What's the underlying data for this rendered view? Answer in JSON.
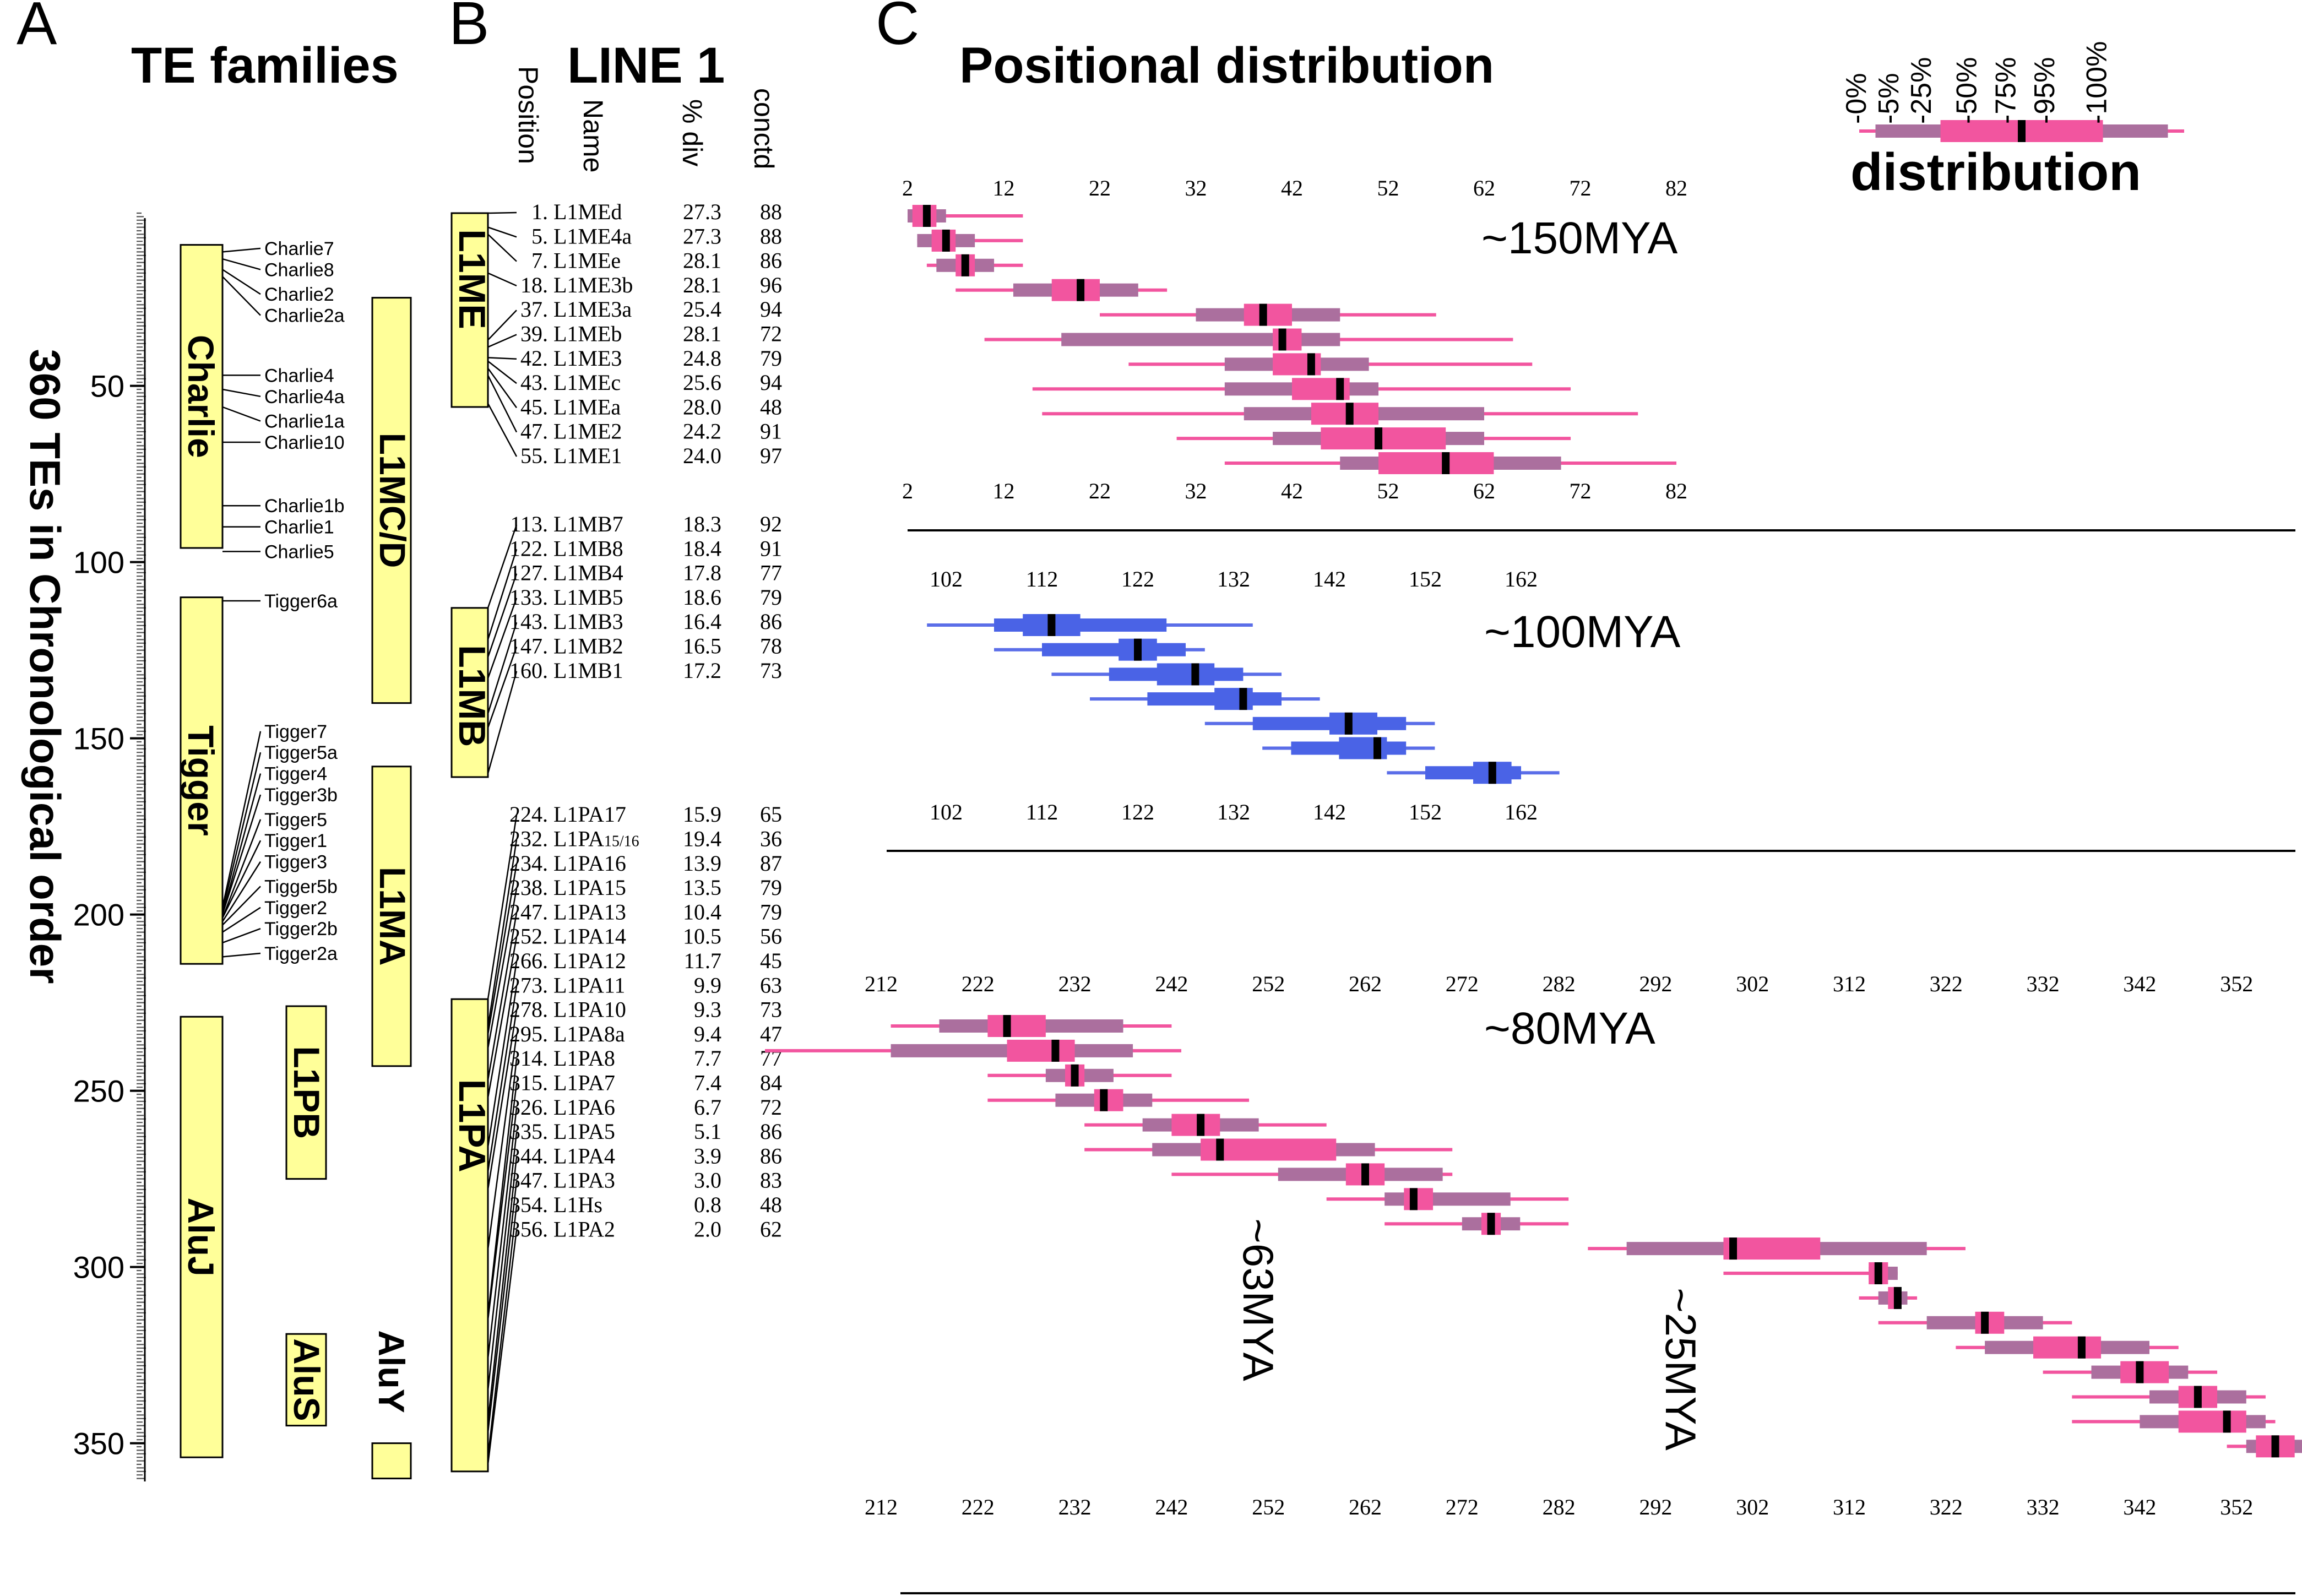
{
  "panel_a": {
    "letter": "A",
    "title": "TE families",
    "y_axis_label": "360 TEs in Chronological order",
    "ticks": [
      "50",
      "100",
      "150",
      "200",
      "250",
      "300",
      "350"
    ],
    "families": [
      {
        "name": "Charlie",
        "start": 10,
        "end": 96,
        "col": 0
      },
      {
        "name": "Tigger",
        "start": 110,
        "end": 214,
        "col": 0
      },
      {
        "name": "AluJ",
        "start": 229,
        "end": 354,
        "col": 0
      },
      {
        "name": "L1MC/D",
        "start": 25,
        "end": 140,
        "col": 2
      },
      {
        "name": "L1MA",
        "start": 158,
        "end": 243,
        "col": 2
      },
      {
        "name": "L1PB",
        "start": 226,
        "end": 275,
        "col": 1
      },
      {
        "name": "AluS",
        "start": 319,
        "end": 345,
        "col": 1
      },
      {
        "name": "AluY",
        "start": 350,
        "end": 360,
        "col": 2,
        "label_outside": true
      }
    ],
    "charlie_subfamilies": [
      {
        "name": "Charlie7",
        "row": 11,
        "at": 12
      },
      {
        "name": "Charlie8",
        "row": 17,
        "at": 14
      },
      {
        "name": "Charlie2",
        "row": 24,
        "at": 17
      },
      {
        "name": "Charlie2a",
        "row": 30,
        "at": 19
      },
      {
        "name": "Charlie4",
        "row": 47,
        "at": 47
      },
      {
        "name": "Charlie4a",
        "row": 53,
        "at": 51
      },
      {
        "name": "Charlie1a",
        "row": 60,
        "at": 56
      },
      {
        "name": "Charlie10",
        "row": 66,
        "at": 66
      },
      {
        "name": "Charlie1b",
        "row": 84,
        "at": 84
      },
      {
        "name": "Charlie1",
        "row": 90,
        "at": 90
      },
      {
        "name": "Charlie5",
        "row": 97,
        "at": 97
      }
    ],
    "tigger_subfamilies": [
      {
        "name": "Tigger6a",
        "row": 111,
        "at": 111
      },
      {
        "name": "Tigger7",
        "row": 148,
        "at": 198
      },
      {
        "name": "Tigger5a",
        "row": 154,
        "at": 199
      },
      {
        "name": "Tigger4",
        "row": 160,
        "at": 200
      },
      {
        "name": "Tigger3b",
        "row": 166,
        "at": 200
      },
      {
        "name": "Tigger5",
        "row": 173,
        "at": 201
      },
      {
        "name": "Tigger1",
        "row": 179,
        "at": 201
      },
      {
        "name": "Tigger3",
        "row": 185,
        "at": 202
      },
      {
        "name": "Tigger5b",
        "row": 192,
        "at": 203
      },
      {
        "name": "Tigger2",
        "row": 198,
        "at": 205
      },
      {
        "name": "Tigger2b",
        "row": 204,
        "at": 208
      },
      {
        "name": "Tigger2a",
        "row": 211,
        "at": 212
      }
    ]
  },
  "panel_b": {
    "letter": "B",
    "title": "LINE 1",
    "col_headers": [
      "Position",
      "Name",
      "% div",
      "conctd"
    ],
    "groups": [
      {
        "name": "L1ME",
        "start": 1,
        "end": 56
      },
      {
        "name": "L1MB",
        "start": 113,
        "end": 161
      },
      {
        "name": "L1PA",
        "start": 224,
        "end": 358
      }
    ],
    "rows": [
      {
        "pos": "1.",
        "name": "L1MEd",
        "div": "27.3",
        "conctd": "88",
        "p": 1,
        "r": 0
      },
      {
        "pos": "5.",
        "name": "L1ME4a",
        "div": "27.3",
        "conctd": "88",
        "p": 5,
        "r": 1
      },
      {
        "pos": "7.",
        "name": "L1MEe",
        "div": "28.1",
        "conctd": "86",
        "p": 7,
        "r": 2
      },
      {
        "pos": "18.",
        "name": "L1ME3b",
        "div": "28.1",
        "conctd": "96",
        "p": 18,
        "r": 3
      },
      {
        "pos": "37.",
        "name": "L1ME3a",
        "div": "25.4",
        "conctd": "94",
        "p": 37,
        "r": 4
      },
      {
        "pos": "39.",
        "name": "L1MEb",
        "div": "28.1",
        "conctd": "72",
        "p": 39,
        "r": 5
      },
      {
        "pos": "42.",
        "name": "L1ME3",
        "div": "24.8",
        "conctd": "79",
        "p": 42,
        "r": 6
      },
      {
        "pos": "43.",
        "name": "L1MEc",
        "div": "25.6",
        "conctd": "94",
        "p": 43,
        "r": 7
      },
      {
        "pos": "45.",
        "name": "L1MEa",
        "div": "28.0",
        "conctd": "48",
        "p": 45,
        "r": 8
      },
      {
        "pos": "47.",
        "name": "L1ME2",
        "div": "24.2",
        "conctd": "91",
        "p": 47,
        "r": 9
      },
      {
        "pos": "55.",
        "name": "L1ME1",
        "div": "24.0",
        "conctd": "97",
        "p": 55,
        "r": 10
      },
      {
        "pos": "113.",
        "name": "L1MB7",
        "div": "18.3",
        "conctd": "92",
        "p": 113,
        "r": 12.8
      },
      {
        "pos": "122.",
        "name": "L1MB8",
        "div": "18.4",
        "conctd": "91",
        "p": 122,
        "r": 13.8
      },
      {
        "pos": "127.",
        "name": "L1MB4",
        "div": "17.8",
        "conctd": "77",
        "p": 127,
        "r": 14.8
      },
      {
        "pos": "133.",
        "name": "L1MB5",
        "div": "18.6",
        "conctd": "79",
        "p": 133,
        "r": 15.8
      },
      {
        "pos": "143.",
        "name": "L1MB3",
        "div": "16.4",
        "conctd": "86",
        "p": 143,
        "r": 16.8
      },
      {
        "pos": "147.",
        "name": "L1MB2",
        "div": "16.5",
        "conctd": "78",
        "p": 147,
        "r": 17.8
      },
      {
        "pos": "160.",
        "name": "L1MB1",
        "div": "17.2",
        "conctd": "73",
        "p": 160,
        "r": 18.8
      },
      {
        "pos": "224.",
        "name": "L1PA17",
        "div": "15.9",
        "conctd": "65",
        "p": 224,
        "r": 24.7
      },
      {
        "pos": "232.",
        "name": "L1PA",
        "sub": "15/16",
        "div": "19.4",
        "conctd": "36",
        "p": 232,
        "r": 25.7
      },
      {
        "pos": "234.",
        "name": "L1PA16",
        "div": "13.9",
        "conctd": "87",
        "p": 234,
        "r": 26.7
      },
      {
        "pos": "238.",
        "name": "L1PA15",
        "div": "13.5",
        "conctd": "79",
        "p": 238,
        "r": 27.7
      },
      {
        "pos": "247.",
        "name": "L1PA13",
        "div": "10.4",
        "conctd": "79",
        "p": 247,
        "r": 28.7
      },
      {
        "pos": "252.",
        "name": "L1PA14",
        "div": "10.5",
        "conctd": "56",
        "p": 252,
        "r": 29.7
      },
      {
        "pos": "266.",
        "name": "L1PA12",
        "div": "11.7",
        "conctd": "45",
        "p": 266,
        "r": 30.7
      },
      {
        "pos": "273.",
        "name": "L1PA11",
        "div": "9.9",
        "conctd": "63",
        "p": 273,
        "r": 31.7
      },
      {
        "pos": "278.",
        "name": "L1PA10",
        "div": "9.3",
        "conctd": "73",
        "p": 278,
        "r": 32.7
      },
      {
        "pos": "295.",
        "name": "L1PA8a",
        "div": "9.4",
        "conctd": "47",
        "p": 295,
        "r": 33.7
      },
      {
        "pos": "314.",
        "name": "L1PA8",
        "div": "7.7",
        "conctd": "77",
        "p": 314,
        "r": 34.7
      },
      {
        "pos": "315.",
        "name": "L1PA7",
        "div": "7.4",
        "conctd": "84",
        "p": 315,
        "r": 35.7
      },
      {
        "pos": "326.",
        "name": "L1PA6",
        "div": "6.7",
        "conctd": "72",
        "p": 326,
        "r": 36.7
      },
      {
        "pos": "335.",
        "name": "L1PA5",
        "div": "5.1",
        "conctd": "86",
        "p": 335,
        "r": 37.7
      },
      {
        "pos": "344.",
        "name": "L1PA4",
        "div": "3.9",
        "conctd": "86",
        "p": 344,
        "r": 38.7
      },
      {
        "pos": "347.",
        "name": "L1PA3",
        "div": "3.0",
        "conctd": "83",
        "p": 347,
        "r": 39.7
      },
      {
        "pos": "354.",
        "name": "L1Hs",
        "div": "0.8",
        "conctd": "48",
        "p": 354,
        "r": 40.7
      },
      {
        "pos": "356.",
        "name": "L1PA2",
        "div": "2.0",
        "conctd": "62",
        "p": 356,
        "r": 41.7
      }
    ]
  },
  "panel_c": {
    "letter": "C",
    "title": "Positional distribution",
    "legend": {
      "labels": [
        "0%",
        "5%",
        "25%",
        "50%",
        "75%",
        "95%",
        "100%"
      ],
      "title": "distribution",
      "box": {
        "min": 0,
        "p5": 5,
        "p25": 25,
        "med": 50,
        "p75": 75,
        "p95": 95,
        "max": 100
      }
    },
    "colors": {
      "pink": "#f2559f",
      "mauve": "#ab6f9e",
      "blue_line": "#5b6ee8",
      "blue_box": "#4a63e6",
      "median": "#000000",
      "family_box": "#ffff99"
    },
    "sections": [
      {
        "label": "~150MYA",
        "axis_lo": 2,
        "axis_hi": 82,
        "ticks": [
          "2",
          "12",
          "22",
          "32",
          "42",
          "52",
          "62",
          "72",
          "82"
        ],
        "color": "pink",
        "boxes": [
          {
            "min": 2,
            "p5": 2,
            "p25": 2.5,
            "med": 4,
            "p75": 5,
            "p95": 6,
            "max": 14
          },
          {
            "min": 3,
            "p5": 3,
            "p25": 4.5,
            "med": 6,
            "p75": 7,
            "p95": 9,
            "max": 14
          },
          {
            "min": 4,
            "p5": 5,
            "p25": 7,
            "med": 8,
            "p75": 9,
            "p95": 11,
            "max": 14
          },
          {
            "min": 7,
            "p5": 13,
            "p25": 17,
            "med": 20,
            "p75": 22,
            "p95": 26,
            "max": 29
          },
          {
            "min": 22,
            "p5": 32,
            "p25": 37,
            "med": 39,
            "p75": 42,
            "p95": 47,
            "max": 57
          },
          {
            "min": 10,
            "p5": 18,
            "p25": 40,
            "med": 41,
            "p75": 43,
            "p95": 47,
            "max": 65
          },
          {
            "min": 25,
            "p5": 35,
            "p25": 40,
            "med": 44,
            "p75": 45,
            "p95": 50,
            "max": 67
          },
          {
            "min": 15,
            "p5": 35,
            "p25": 42,
            "med": 47,
            "p75": 48,
            "p95": 51,
            "max": 71
          },
          {
            "min": 16,
            "p5": 37,
            "p25": 44,
            "med": 48,
            "p75": 51,
            "p95": 62,
            "max": 78
          },
          {
            "min": 30,
            "p5": 40,
            "p25": 45,
            "med": 51,
            "p75": 58,
            "p95": 62,
            "max": 71
          },
          {
            "min": 35,
            "p5": 47,
            "p25": 51,
            "med": 58,
            "p75": 63,
            "p95": 70,
            "max": 82
          }
        ]
      },
      {
        "label": "~100MYA",
        "axis_lo": 102,
        "axis_hi": 162,
        "ticks": [
          "102",
          "112",
          "122",
          "132",
          "142",
          "152",
          "162"
        ],
        "color": "blue",
        "boxes": [
          {
            "min": 100,
            "p5": 107,
            "p25": 110,
            "med": 113,
            "p75": 116,
            "p95": 125,
            "max": 134
          },
          {
            "min": 107,
            "p5": 112,
            "p25": 120,
            "med": 122,
            "p75": 124,
            "p95": 127,
            "max": 129
          },
          {
            "min": 113,
            "p5": 119,
            "p25": 124,
            "med": 128,
            "p75": 130,
            "p95": 133,
            "max": 137
          },
          {
            "min": 117,
            "p5": 123,
            "p25": 130,
            "med": 133,
            "p75": 134,
            "p95": 137,
            "max": 141
          },
          {
            "min": 129,
            "p5": 134,
            "p25": 142,
            "med": 144,
            "p75": 147,
            "p95": 150,
            "max": 153
          },
          {
            "min": 135,
            "p5": 138,
            "p25": 143,
            "med": 147,
            "p75": 148,
            "p95": 150,
            "max": 153
          },
          {
            "min": 148,
            "p5": 152,
            "p25": 157,
            "med": 159,
            "p75": 161,
            "p95": 162,
            "max": 166
          }
        ]
      },
      {
        "label": "~80MYA",
        "axis_lo": 212,
        "axis_hi": 352,
        "ticks": [
          "212",
          "222",
          "232",
          "242",
          "252",
          "262",
          "272",
          "282",
          "292",
          "302",
          "312",
          "322",
          "332",
          "342",
          "352"
        ],
        "color": "pink",
        "annotations": [
          "~63MYA",
          "~25MYA"
        ],
        "boxes": [
          {
            "min": 213,
            "p5": 218,
            "p25": 223,
            "med": 225,
            "p75": 229,
            "p95": 237,
            "max": 242
          },
          {
            "min": 200,
            "p5": 213,
            "p25": 225,
            "med": 230,
            "p75": 232,
            "p95": 238,
            "max": 243
          },
          {
            "min": 223,
            "p5": 229,
            "p25": 231,
            "med": 232,
            "p75": 233,
            "p95": 236,
            "max": 242
          },
          {
            "min": 223,
            "p5": 230,
            "p25": 234,
            "med": 235,
            "p75": 237,
            "p95": 240,
            "max": 250
          },
          {
            "min": 233,
            "p5": 239,
            "p25": 242,
            "med": 245,
            "p75": 247,
            "p95": 251,
            "max": 258
          },
          {
            "min": 233,
            "p5": 240,
            "p25": 245,
            "med": 247,
            "p75": 259,
            "p95": 263,
            "max": 271
          },
          {
            "min": 242,
            "p5": 253,
            "p25": 260,
            "med": 262,
            "p75": 264,
            "p95": 270,
            "max": 271
          },
          {
            "min": 258,
            "p5": 264,
            "p25": 266,
            "med": 267,
            "p75": 269,
            "p95": 277,
            "max": 283
          },
          {
            "min": 264,
            "p5": 272,
            "p25": 274,
            "med": 275,
            "p75": 276,
            "p95": 278,
            "max": 283
          },
          {
            "min": 285,
            "p5": 289,
            "p25": 299,
            "med": 300,
            "p75": 309,
            "p95": 320,
            "max": 324
          },
          {
            "min": 299,
            "p5": 314,
            "p25": 314,
            "med": 315,
            "p75": 316,
            "p95": 317,
            "max": 317
          },
          {
            "min": 313,
            "p5": 315,
            "p25": 316,
            "med": 317,
            "p75": 317,
            "p95": 318,
            "max": 319
          },
          {
            "min": 315,
            "p5": 320,
            "p25": 325,
            "med": 326,
            "p75": 328,
            "p95": 332,
            "max": 335
          },
          {
            "min": 323,
            "p5": 326,
            "p25": 331,
            "med": 336,
            "p75": 338,
            "p95": 343,
            "max": 346
          },
          {
            "min": 332,
            "p5": 337,
            "p25": 340,
            "med": 342,
            "p75": 345,
            "p95": 347,
            "max": 350
          },
          {
            "min": 335,
            "p5": 343,
            "p25": 346,
            "med": 348,
            "p75": 350,
            "p95": 353,
            "max": 355
          },
          {
            "min": 335,
            "p5": 342,
            "p25": 346,
            "med": 351,
            "p75": 353,
            "p95": 355,
            "max": 356
          },
          {
            "min": 351,
            "p5": 353,
            "p25": 354,
            "med": 356,
            "p75": 358,
            "p95": 360,
            "max": 362
          }
        ]
      }
    ]
  }
}
